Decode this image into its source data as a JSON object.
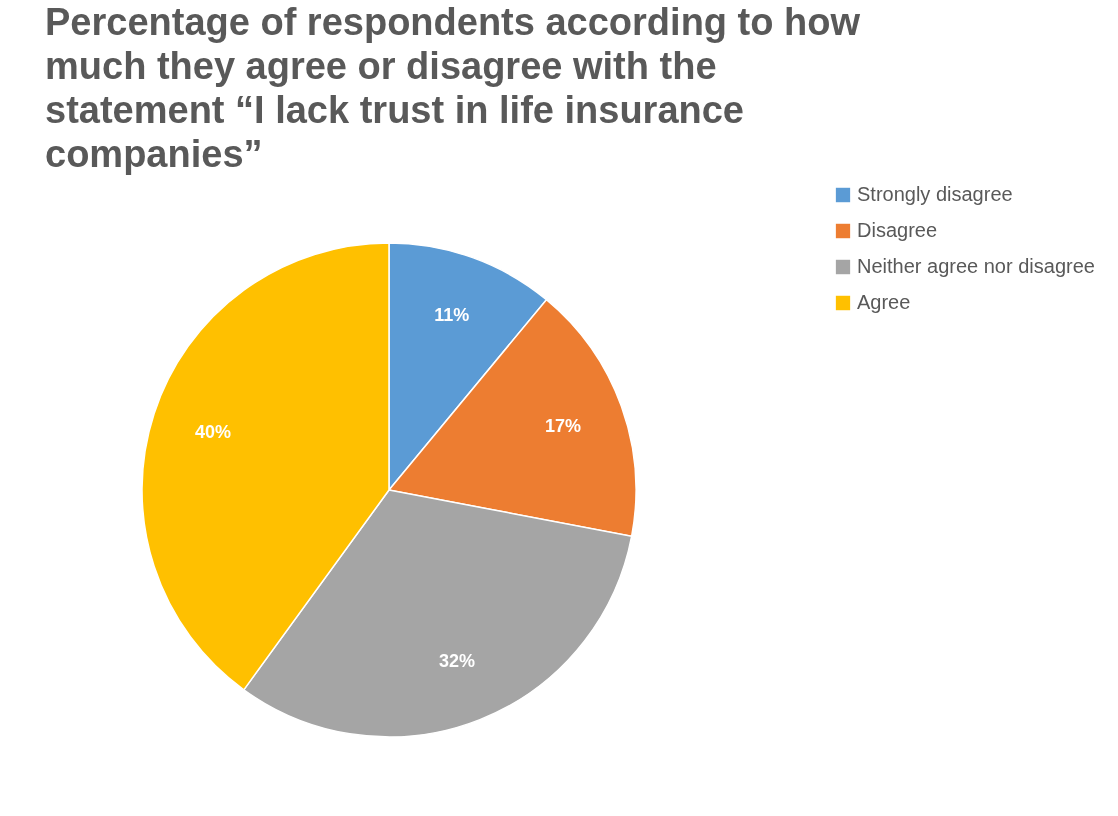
{
  "chart_data": {
    "type": "pie",
    "title": "Percentage of respondents according to how much they agree or disagree with the statement “I lack trust in life insurance companies”",
    "categories": [
      "Strongly disagree",
      "Disagree",
      "Neither agree nor disagree",
      "Agree"
    ],
    "values": [
      11,
      17,
      32,
      40
    ],
    "colors": [
      "#5b9bd5",
      "#ed7d31",
      "#a5a5a5",
      "#ffc000"
    ],
    "value_labels": [
      "11%",
      "17%",
      "32%",
      "40%"
    ],
    "legend": "right"
  }
}
